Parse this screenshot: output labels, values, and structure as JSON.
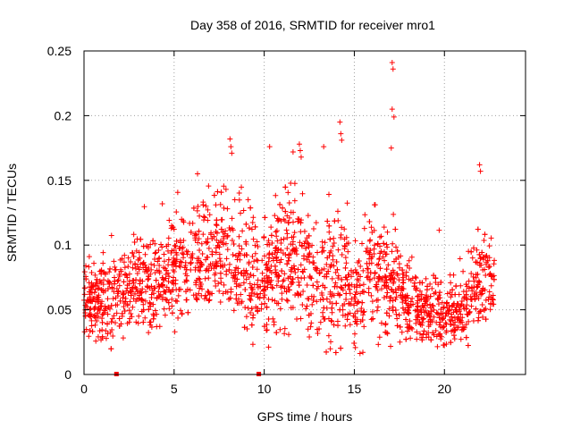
{
  "chart_data": {
    "type": "scatter",
    "title": "Day 358 of 2016, SRMTID for receiver mro1",
    "xlabel": "GPS time / hours",
    "ylabel": "SRMTID / TECUs",
    "xlim": [
      0,
      24.5
    ],
    "ylim": [
      0,
      0.25
    ],
    "x_ticks": [
      0,
      5,
      10,
      15,
      20
    ],
    "x_tick_labels": [
      "0",
      "5",
      "10",
      "15",
      "20"
    ],
    "y_ticks": [
      0,
      0.05,
      0.1,
      0.15,
      0.2,
      0.25
    ],
    "y_tick_labels": [
      "0",
      "0.05",
      "0.1",
      "0.15",
      "0.2",
      "0.25"
    ],
    "grid": true,
    "marker": "plus",
    "series_color": "#ff0000",
    "outlier_points": [
      {
        "x": 8.1,
        "y": 0.182
      },
      {
        "x": 8.15,
        "y": 0.176
      },
      {
        "x": 8.2,
        "y": 0.171
      },
      {
        "x": 11.95,
        "y": 0.178
      },
      {
        "x": 12.0,
        "y": 0.173
      },
      {
        "x": 12.05,
        "y": 0.168
      },
      {
        "x": 14.2,
        "y": 0.195
      },
      {
        "x": 14.25,
        "y": 0.186
      },
      {
        "x": 14.3,
        "y": 0.181
      },
      {
        "x": 17.1,
        "y": 0.241
      },
      {
        "x": 17.15,
        "y": 0.236
      },
      {
        "x": 17.1,
        "y": 0.205
      },
      {
        "x": 17.2,
        "y": 0.199
      },
      {
        "x": 17.05,
        "y": 0.175
      },
      {
        "x": 21.95,
        "y": 0.162
      },
      {
        "x": 22.0,
        "y": 0.157
      },
      {
        "x": 10.3,
        "y": 0.176
      },
      {
        "x": 11.6,
        "y": 0.172
      },
      {
        "x": 6.3,
        "y": 0.155
      },
      {
        "x": 13.3,
        "y": 0.176
      }
    ],
    "zero_markers": [
      {
        "x": 1.8,
        "y": 0
      },
      {
        "x": 9.7,
        "y": 0
      }
    ],
    "envelope": {
      "hours": [
        0,
        1,
        2,
        3,
        4,
        5,
        6,
        7,
        8,
        9,
        10,
        11,
        12,
        13,
        14,
        15,
        16,
        17,
        18,
        19,
        20,
        21,
        22,
        22.8
      ],
      "mean": [
        0.058,
        0.052,
        0.062,
        0.07,
        0.072,
        0.078,
        0.095,
        0.088,
        0.1,
        0.078,
        0.068,
        0.085,
        0.09,
        0.062,
        0.08,
        0.06,
        0.085,
        0.07,
        0.052,
        0.048,
        0.045,
        0.048,
        0.075,
        0.07
      ],
      "spread": [
        0.012,
        0.014,
        0.016,
        0.02,
        0.02,
        0.018,
        0.02,
        0.02,
        0.022,
        0.022,
        0.022,
        0.024,
        0.024,
        0.022,
        0.026,
        0.022,
        0.024,
        0.022,
        0.014,
        0.012,
        0.012,
        0.012,
        0.02,
        0.016
      ]
    },
    "approx_point_count": 2400
  }
}
